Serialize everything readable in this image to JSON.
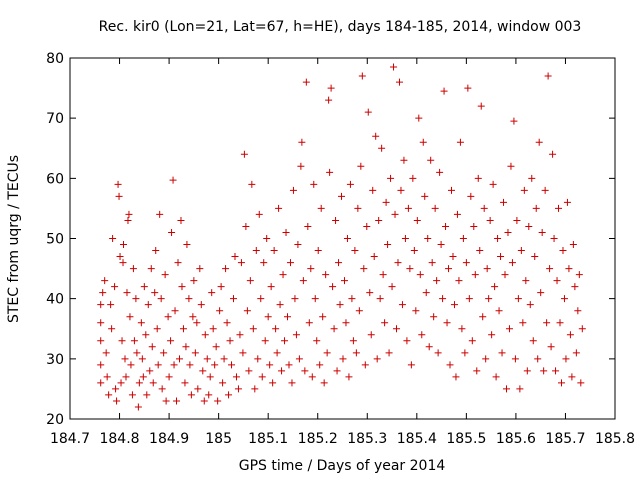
{
  "chart_data": {
    "type": "scatter",
    "title": "Rec. kir0 (Lon=21, Lat=67, h=HE), days 184-185, 2014, window 003",
    "xlabel": "GPS time / Days of year 2014",
    "ylabel": "STEC from uqrg / TECUs",
    "xlim": [
      184.7,
      185.8
    ],
    "ylim": [
      20,
      80
    ],
    "xticks": [
      "184.7",
      "184.8",
      "184.9",
      "185",
      "185.1",
      "185.2",
      "185.3",
      "185.4",
      "185.5",
      "185.6",
      "185.7",
      "185.8"
    ],
    "yticks": [
      "20",
      "30",
      "40",
      "50",
      "60",
      "70",
      "80"
    ],
    "grid": false,
    "legend": "none",
    "marker": "plus",
    "color": "#cc0000",
    "points": [
      [
        184.762,
        39
      ],
      [
        184.762,
        36
      ],
      [
        184.762,
        33
      ],
      [
        184.762,
        29
      ],
      [
        184.762,
        26
      ],
      [
        184.766,
        41
      ],
      [
        184.77,
        43
      ],
      [
        184.773,
        31
      ],
      [
        184.775,
        27
      ],
      [
        184.778,
        24
      ],
      [
        184.782,
        39
      ],
      [
        184.784,
        35
      ],
      [
        184.786,
        50
      ],
      [
        184.79,
        42
      ],
      [
        184.792,
        25
      ],
      [
        184.794,
        23
      ],
      [
        184.797,
        59
      ],
      [
        184.799,
        57
      ],
      [
        184.801,
        47
      ],
      [
        184.803,
        26
      ],
      [
        184.805,
        33
      ],
      [
        184.807,
        46
      ],
      [
        184.808,
        49
      ],
      [
        184.811,
        30
      ],
      [
        184.813,
        27
      ],
      [
        184.815,
        41
      ],
      [
        184.817,
        53
      ],
      [
        184.819,
        54
      ],
      [
        184.821,
        37
      ],
      [
        184.823,
        29
      ],
      [
        184.826,
        24
      ],
      [
        184.828,
        45
      ],
      [
        184.83,
        33
      ],
      [
        184.833,
        40
      ],
      [
        184.835,
        31
      ],
      [
        184.838,
        22
      ],
      [
        184.84,
        26
      ],
      [
        184.844,
        36
      ],
      [
        184.846,
        30
      ],
      [
        184.848,
        27
      ],
      [
        184.85,
        42
      ],
      [
        184.853,
        34
      ],
      [
        184.855,
        24
      ],
      [
        184.858,
        39
      ],
      [
        184.861,
        28
      ],
      [
        184.864,
        45
      ],
      [
        184.866,
        32
      ],
      [
        184.868,
        26
      ],
      [
        184.871,
        41
      ],
      [
        184.873,
        48
      ],
      [
        184.876,
        35
      ],
      [
        184.878,
        29
      ],
      [
        184.881,
        54
      ],
      [
        184.884,
        40
      ],
      [
        184.886,
        25
      ],
      [
        184.889,
        31
      ],
      [
        184.892,
        44
      ],
      [
        184.894,
        23
      ],
      [
        184.898,
        37
      ],
      [
        184.9,
        27
      ],
      [
        184.903,
        33
      ],
      [
        184.905,
        51
      ],
      [
        184.908,
        59.7
      ],
      [
        184.91,
        29
      ],
      [
        184.912,
        38
      ],
      [
        184.915,
        23
      ],
      [
        184.918,
        46
      ],
      [
        184.921,
        30
      ],
      [
        184.924,
        53
      ],
      [
        184.926,
        42
      ],
      [
        184.929,
        35
      ],
      [
        184.932,
        26
      ],
      [
        184.934,
        32
      ],
      [
        184.936,
        49
      ],
      [
        184.94,
        40
      ],
      [
        184.942,
        29
      ],
      [
        184.945,
        24
      ],
      [
        184.948,
        37
      ],
      [
        184.95,
        43
      ],
      [
        184.953,
        31
      ],
      [
        184.956,
        36
      ],
      [
        184.958,
        25
      ],
      [
        184.962,
        45
      ],
      [
        184.965,
        39
      ],
      [
        184.968,
        28
      ],
      [
        184.971,
        23
      ],
      [
        184.973,
        34
      ],
      [
        184.977,
        30
      ],
      [
        184.98,
        24
      ],
      [
        184.983,
        27
      ],
      [
        184.986,
        41
      ],
      [
        184.989,
        35
      ],
      [
        184.992,
        29
      ],
      [
        184.995,
        32
      ],
      [
        184.998,
        23
      ],
      [
        185.002,
        38
      ],
      [
        185.005,
        42
      ],
      [
        185.008,
        26
      ],
      [
        185.011,
        30
      ],
      [
        185.014,
        45
      ],
      [
        185.017,
        36
      ],
      [
        185.02,
        24
      ],
      [
        185.023,
        33
      ],
      [
        185.026,
        29
      ],
      [
        185.03,
        40
      ],
      [
        185.033,
        47
      ],
      [
        185.036,
        27
      ],
      [
        185.04,
        25
      ],
      [
        185.043,
        34
      ],
      [
        185.046,
        46
      ],
      [
        185.049,
        31
      ],
      [
        185.052,
        64
      ],
      [
        185.055,
        52
      ],
      [
        185.058,
        38
      ],
      [
        185.061,
        28
      ],
      [
        185.064,
        43
      ],
      [
        185.067,
        59
      ],
      [
        185.07,
        35
      ],
      [
        185.073,
        25
      ],
      [
        185.076,
        48
      ],
      [
        185.079,
        30
      ],
      [
        185.082,
        54
      ],
      [
        185.085,
        40
      ],
      [
        185.088,
        27
      ],
      [
        185.091,
        46
      ],
      [
        185.094,
        33
      ],
      [
        185.097,
        50
      ],
      [
        185.1,
        37
      ],
      [
        185.103,
        29
      ],
      [
        185.106,
        42
      ],
      [
        185.109,
        26
      ],
      [
        185.112,
        48
      ],
      [
        185.115,
        35
      ],
      [
        185.118,
        31
      ],
      [
        185.121,
        55
      ],
      [
        185.124,
        39
      ],
      [
        185.127,
        28
      ],
      [
        185.13,
        44
      ],
      [
        185.133,
        33
      ],
      [
        185.136,
        51
      ],
      [
        185.139,
        37
      ],
      [
        185.142,
        29
      ],
      [
        185.145,
        46
      ],
      [
        185.148,
        26
      ],
      [
        185.151,
        58
      ],
      [
        185.154,
        40
      ],
      [
        185.157,
        34
      ],
      [
        185.16,
        49
      ],
      [
        185.163,
        30
      ],
      [
        185.166,
        62
      ],
      [
        185.168,
        66
      ],
      [
        185.171,
        43
      ],
      [
        185.174,
        28
      ],
      [
        185.177,
        76
      ],
      [
        185.18,
        52
      ],
      [
        185.183,
        36
      ],
      [
        185.186,
        45
      ],
      [
        185.189,
        27
      ],
      [
        185.192,
        59
      ],
      [
        185.195,
        40
      ],
      [
        185.198,
        33
      ],
      [
        185.201,
        48
      ],
      [
        185.204,
        29
      ],
      [
        185.207,
        55
      ],
      [
        185.21,
        37
      ],
      [
        185.213,
        26
      ],
      [
        185.216,
        44
      ],
      [
        185.219,
        31
      ],
      [
        185.222,
        73
      ],
      [
        185.224,
        61
      ],
      [
        185.227,
        75
      ],
      [
        185.23,
        42
      ],
      [
        185.233,
        35
      ],
      [
        185.236,
        53
      ],
      [
        185.239,
        28
      ],
      [
        185.242,
        46
      ],
      [
        185.245,
        39
      ],
      [
        185.248,
        57
      ],
      [
        185.251,
        30
      ],
      [
        185.254,
        43
      ],
      [
        185.257,
        36
      ],
      [
        185.26,
        50
      ],
      [
        185.263,
        27
      ],
      [
        185.266,
        59
      ],
      [
        185.269,
        40
      ],
      [
        185.272,
        33
      ],
      [
        185.275,
        48
      ],
      [
        185.278,
        31
      ],
      [
        185.281,
        55
      ],
      [
        185.284,
        38
      ],
      [
        185.287,
        62
      ],
      [
        185.29,
        77
      ],
      [
        185.293,
        45
      ],
      [
        185.296,
        29
      ],
      [
        185.299,
        52
      ],
      [
        185.302,
        71
      ],
      [
        185.305,
        41
      ],
      [
        185.308,
        34
      ],
      [
        185.311,
        58
      ],
      [
        185.314,
        47
      ],
      [
        185.317,
        67
      ],
      [
        185.32,
        30
      ],
      [
        185.323,
        53
      ],
      [
        185.326,
        40
      ],
      [
        185.329,
        65
      ],
      [
        185.332,
        44
      ],
      [
        185.335,
        36
      ],
      [
        185.338,
        56
      ],
      [
        185.341,
        49
      ],
      [
        185.344,
        31
      ],
      [
        185.347,
        60
      ],
      [
        185.35,
        42
      ],
      [
        185.353,
        78.5
      ],
      [
        185.356,
        54
      ],
      [
        185.359,
        35
      ],
      [
        185.362,
        46
      ],
      [
        185.365,
        76
      ],
      [
        185.368,
        58
      ],
      [
        185.371,
        39
      ],
      [
        185.374,
        63
      ],
      [
        185.377,
        50
      ],
      [
        185.38,
        33
      ],
      [
        185.383,
        55
      ],
      [
        185.386,
        45
      ],
      [
        185.389,
        29
      ],
      [
        185.392,
        60
      ],
      [
        185.395,
        48
      ],
      [
        185.398,
        38
      ],
      [
        185.401,
        53
      ],
      [
        185.404,
        70
      ],
      [
        185.407,
        44
      ],
      [
        185.41,
        34
      ],
      [
        185.413,
        66
      ],
      [
        185.416,
        57
      ],
      [
        185.419,
        41
      ],
      [
        185.422,
        50
      ],
      [
        185.425,
        32
      ],
      [
        185.428,
        63
      ],
      [
        185.431,
        46
      ],
      [
        185.434,
        37
      ],
      [
        185.437,
        55
      ],
      [
        185.44,
        43
      ],
      [
        185.443,
        31
      ],
      [
        185.446,
        61
      ],
      [
        185.449,
        49
      ],
      [
        185.452,
        40
      ],
      [
        185.455,
        74.5
      ],
      [
        185.458,
        52
      ],
      [
        185.461,
        36
      ],
      [
        185.464,
        45
      ],
      [
        185.467,
        29
      ],
      [
        185.47,
        58
      ],
      [
        185.473,
        47
      ],
      [
        185.476,
        39
      ],
      [
        185.479,
        27
      ],
      [
        185.482,
        54
      ],
      [
        185.485,
        43
      ],
      [
        185.488,
        66
      ],
      [
        185.491,
        35
      ],
      [
        185.494,
        50
      ],
      [
        185.497,
        31
      ],
      [
        185.5,
        46
      ],
      [
        185.503,
        75
      ],
      [
        185.506,
        40
      ],
      [
        185.509,
        57
      ],
      [
        185.512,
        33
      ],
      [
        185.515,
        52
      ],
      [
        185.518,
        44
      ],
      [
        185.521,
        28
      ],
      [
        185.524,
        60
      ],
      [
        185.527,
        48
      ],
      [
        185.53,
        72
      ],
      [
        185.533,
        37
      ],
      [
        185.536,
        55
      ],
      [
        185.539,
        30
      ],
      [
        185.542,
        45
      ],
      [
        185.545,
        40
      ],
      [
        185.548,
        53
      ],
      [
        185.551,
        34
      ],
      [
        185.554,
        59
      ],
      [
        185.557,
        42
      ],
      [
        185.56,
        27
      ],
      [
        185.563,
        50
      ],
      [
        185.566,
        38
      ],
      [
        185.569,
        47
      ],
      [
        185.572,
        31
      ],
      [
        185.575,
        56
      ],
      [
        185.578,
        44
      ],
      [
        185.581,
        25
      ],
      [
        185.584,
        51
      ],
      [
        185.587,
        35
      ],
      [
        185.59,
        62
      ],
      [
        185.593,
        46
      ],
      [
        185.596,
        69.5
      ],
      [
        185.599,
        30
      ],
      [
        185.602,
        53
      ],
      [
        185.605,
        40
      ],
      [
        185.608,
        25
      ],
      [
        185.611,
        48
      ],
      [
        185.614,
        36
      ],
      [
        185.617,
        58
      ],
      [
        185.62,
        43
      ],
      [
        185.623,
        28
      ],
      [
        185.626,
        52
      ],
      [
        185.629,
        39
      ],
      [
        185.632,
        60
      ],
      [
        185.635,
        33
      ],
      [
        185.638,
        47
      ],
      [
        185.641,
        55
      ],
      [
        185.644,
        30
      ],
      [
        185.647,
        66
      ],
      [
        185.65,
        41
      ],
      [
        185.653,
        51
      ],
      [
        185.656,
        28
      ],
      [
        185.659,
        58
      ],
      [
        185.662,
        36
      ],
      [
        185.665,
        77
      ],
      [
        185.668,
        45
      ],
      [
        185.671,
        32
      ],
      [
        185.674,
        64
      ],
      [
        185.677,
        50
      ],
      [
        185.68,
        28
      ],
      [
        185.683,
        43
      ],
      [
        185.686,
        55
      ],
      [
        185.689,
        36
      ],
      [
        185.692,
        26
      ],
      [
        185.695,
        48
      ],
      [
        185.698,
        40
      ],
      [
        185.701,
        30
      ],
      [
        185.704,
        56
      ],
      [
        185.707,
        45
      ],
      [
        185.71,
        34
      ],
      [
        185.713,
        27
      ],
      [
        185.716,
        49
      ],
      [
        185.719,
        42
      ],
      [
        185.722,
        31
      ],
      [
        185.725,
        38
      ],
      [
        185.728,
        44
      ],
      [
        185.731,
        26
      ],
      [
        185.734,
        35
      ]
    ]
  }
}
